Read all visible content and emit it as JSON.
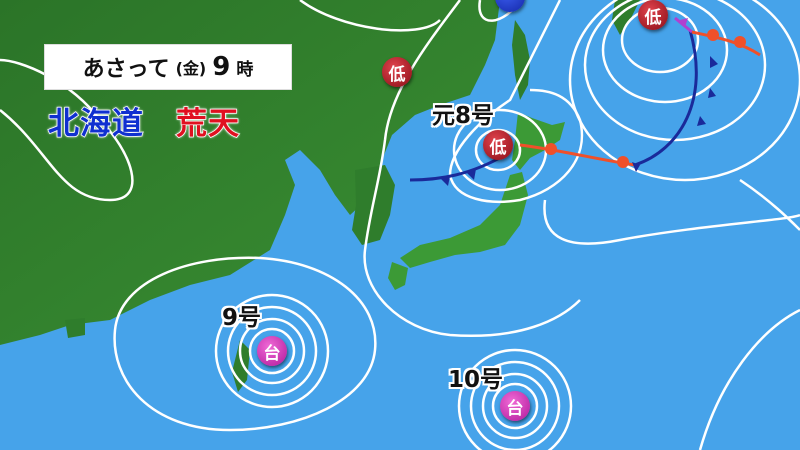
{
  "header": {
    "day": "あさって",
    "weekday": "(金)",
    "hour": "9",
    "hour_unit": "時",
    "region": "北海道",
    "condition": "荒天"
  },
  "colors": {
    "ocean": "#46a3ea",
    "land": "#2f7d2c",
    "low": "#b01a24",
    "typhoon": "#d93cbf",
    "high": "#2a45d0",
    "cold_front": "#1a2a9a",
    "warm_front": "#f0502a",
    "occluded_front": "#b040d0",
    "region_text": "#1030d0",
    "condition_text": "#e01020"
  },
  "markers": {
    "low_1": "低",
    "low_2": "低",
    "low_3": "低",
    "typhoon_1": "台",
    "typhoon_2": "台"
  },
  "labels": {
    "former_8": "元8号",
    "no_9": "9号",
    "no_10": "10号"
  }
}
